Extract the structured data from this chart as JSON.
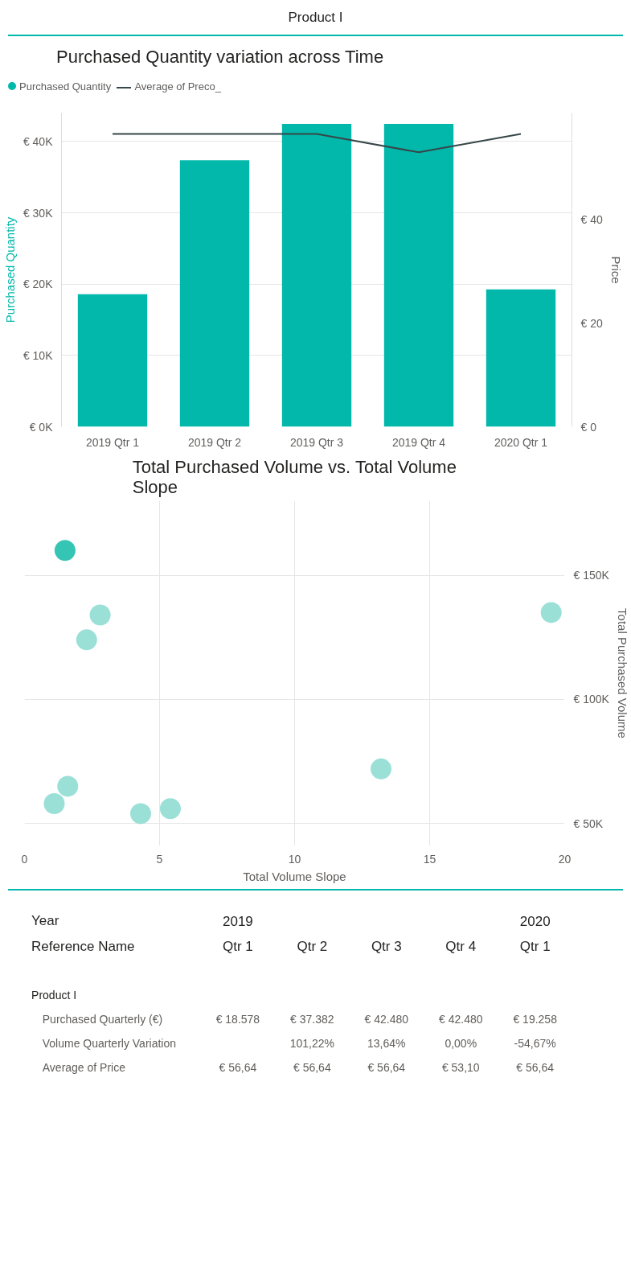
{
  "chart_data": [
    {
      "type": "bar",
      "title": "Purchased Quantity variation across Time",
      "annotations": [
        "Product I"
      ],
      "ylabel": "Purchased Quantity",
      "y2label": "Price",
      "categories": [
        "2019 Qtr 1",
        "2019 Qtr 2",
        "2019 Qtr 3",
        "2019 Qtr 4",
        "2020 Qtr 1"
      ],
      "series": [
        {
          "name": "Purchased Quantity",
          "type": "bar",
          "color": "#01b8aa",
          "values": [
            18578,
            37382,
            42480,
            42480,
            19258
          ]
        },
        {
          "name": "Average of Preco_",
          "type": "line",
          "axis": "y2",
          "color": "#374649",
          "values": [
            56.64,
            56.64,
            56.64,
            53.1,
            56.64
          ]
        }
      ],
      "ylim": [
        0,
        44000
      ],
      "yticks": [
        {
          "value": 0,
          "label": "€ 0K"
        },
        {
          "value": 10000,
          "label": "€ 10K"
        },
        {
          "value": 20000,
          "label": "€ 20K"
        },
        {
          "value": 30000,
          "label": "€ 30K"
        },
        {
          "value": 40000,
          "label": "€ 40K"
        }
      ],
      "y2lim": [
        0,
        60.7
      ],
      "y2ticks": [
        {
          "value": 0,
          "label": "€ 0"
        },
        {
          "value": 20,
          "label": "€ 20"
        },
        {
          "value": 40,
          "label": "€ 40"
        }
      ],
      "grid": "y",
      "legend": "top left"
    },
    {
      "type": "scatter",
      "title": "Total Purchased Volume vs. Total Volume Slope",
      "xlabel": "Total Volume Slope",
      "ylabel": "Total Purchased Volume",
      "marker": "circle",
      "grid": true,
      "xlim": [
        0,
        20
      ],
      "xticks": [
        0,
        5,
        10,
        15,
        20
      ],
      "ylim": [
        41000,
        180000
      ],
      "yticks": [
        {
          "value": 50000,
          "label": "€ 50K"
        },
        {
          "value": 100000,
          "label": "€ 100K"
        },
        {
          "value": 150000,
          "label": "€ 150K"
        }
      ],
      "series": [
        {
          "color": "#8fddd3",
          "x": [
            19.5,
            13.2,
            5.4,
            4.3,
            2.8,
            2.3,
            1.6,
            1.1
          ],
          "values": [
            135000,
            72000,
            56000,
            54000,
            134000,
            124000,
            65000,
            58000
          ]
        },
        {
          "color": "#1fbfad",
          "x": [
            1.5
          ],
          "values": [
            160000
          ]
        }
      ]
    },
    {
      "type": "other",
      "annotations": [
        "Year",
        "2019",
        "2020",
        "Reference Name",
        "Qtr 1",
        "Qtr 2",
        "Qtr 3",
        "Qtr 4",
        "Qtr 1",
        "Product I",
        "Purchased Quarterly (€)",
        "€ 18.578",
        "€ 37.382",
        "€ 42.480",
        "€ 42.480",
        "€ 19.258",
        "Volume Quarterly Variation",
        "101,22%",
        "13,64%",
        "0,00%",
        "-54,67%",
        "Average of Price",
        "€ 56,64",
        "€ 56,64",
        "€ 56,64",
        "€ 53,10",
        "€ 56,64"
      ]
    }
  ]
}
